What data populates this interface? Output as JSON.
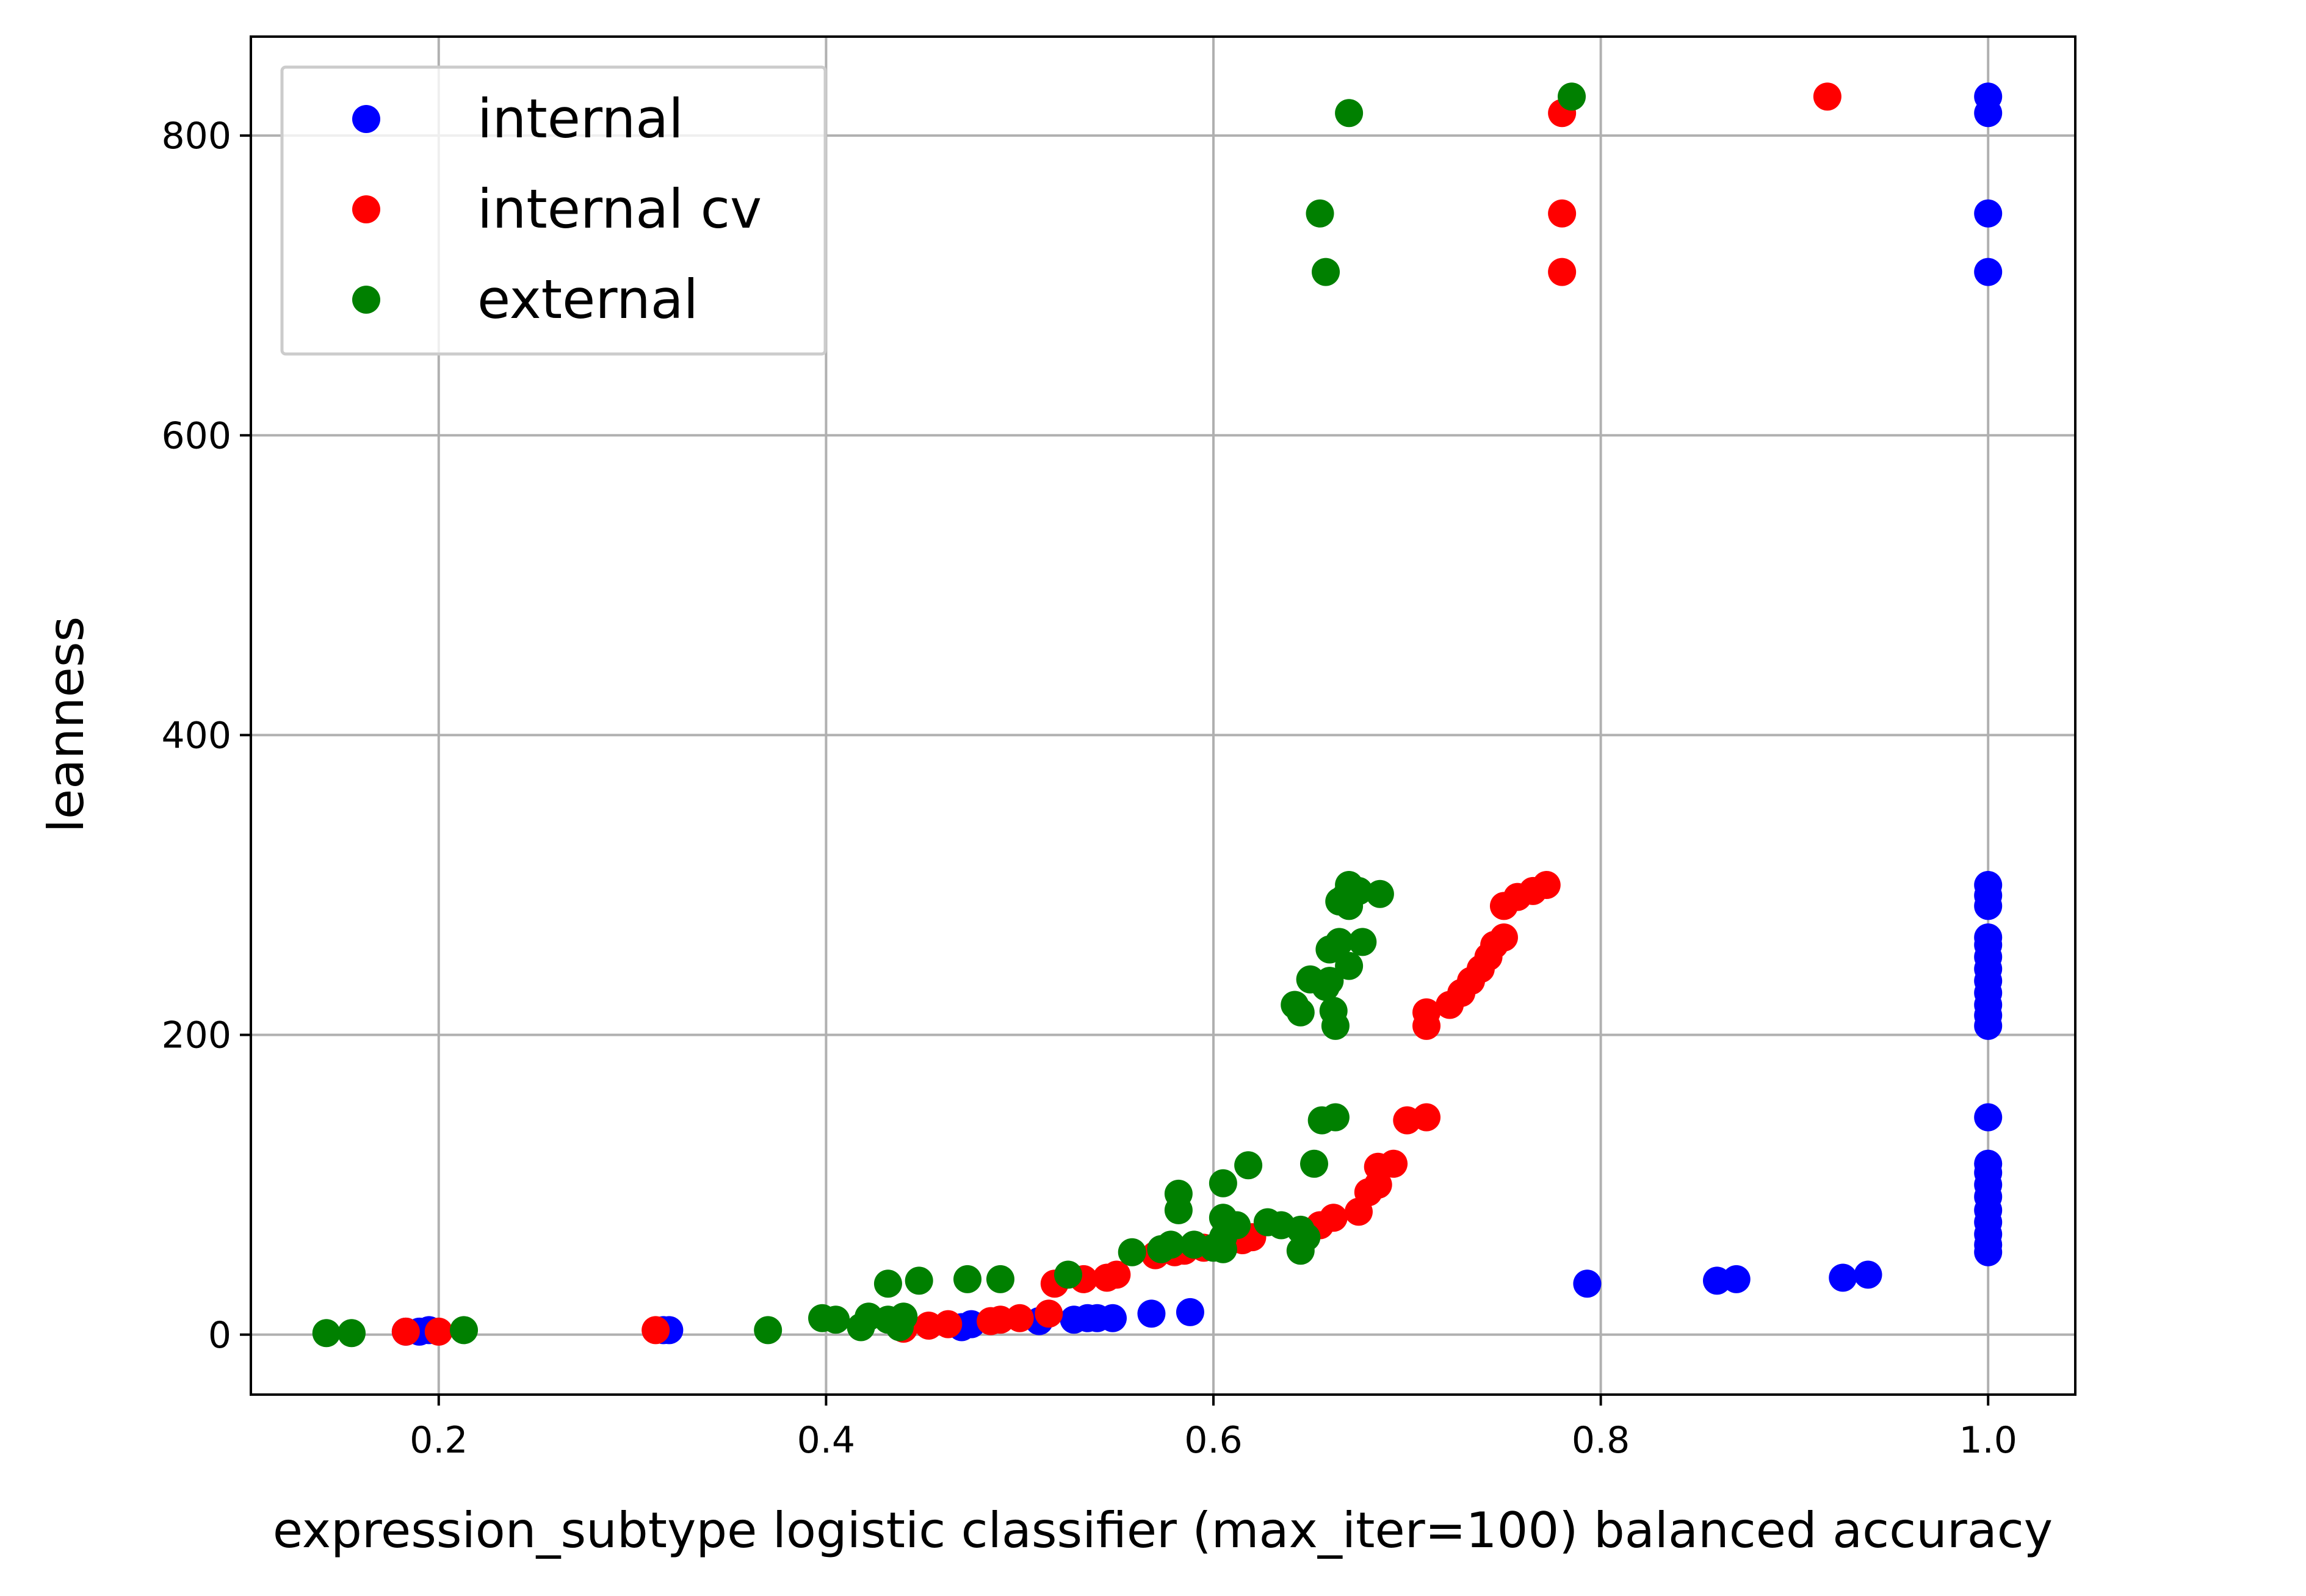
{
  "chart_data": {
    "type": "scatter",
    "title": "",
    "xlabel": "expression_subtype logistic classifier (max_iter=100) balanced accuracy",
    "ylabel": "leanness",
    "xlim": [
      0.103,
      1.045
    ],
    "ylim": [
      -40,
      866
    ],
    "xticks": [
      0.2,
      0.4,
      0.6,
      0.8,
      1.0
    ],
    "xtick_labels": [
      "0.2",
      "0.4",
      "0.6",
      "0.8",
      "1.0"
    ],
    "yticks": [
      0,
      200,
      400,
      600,
      800
    ],
    "ytick_labels": [
      "0",
      "200",
      "400",
      "600",
      "800"
    ],
    "grid": true,
    "legend_position": "top-left",
    "series": [
      {
        "name": "internal",
        "color": "#0000ff",
        "points": [
          [
            0.183,
            2
          ],
          [
            0.19,
            2
          ],
          [
            0.195,
            3
          ],
          [
            0.316,
            3
          ],
          [
            0.319,
            3
          ],
          [
            0.47,
            5
          ],
          [
            0.475,
            7
          ],
          [
            0.51,
            9
          ],
          [
            0.528,
            10
          ],
          [
            0.535,
            11
          ],
          [
            0.54,
            11
          ],
          [
            0.548,
            11
          ],
          [
            0.568,
            14
          ],
          [
            0.588,
            15
          ],
          [
            0.793,
            34
          ],
          [
            0.86,
            36
          ],
          [
            0.87,
            37
          ],
          [
            0.925,
            38
          ],
          [
            0.938,
            40
          ],
          [
            1.0,
            55
          ],
          [
            1.0,
            60
          ],
          [
            1.0,
            67
          ],
          [
            1.0,
            75
          ],
          [
            1.0,
            83
          ],
          [
            1.0,
            92
          ],
          [
            1.0,
            100
          ],
          [
            1.0,
            108
          ],
          [
            1.0,
            114
          ],
          [
            1.0,
            145
          ],
          [
            1.0,
            206
          ],
          [
            1.0,
            213
          ],
          [
            1.0,
            220
          ],
          [
            1.0,
            228
          ],
          [
            1.0,
            236
          ],
          [
            1.0,
            244
          ],
          [
            1.0,
            252
          ],
          [
            1.0,
            260
          ],
          [
            1.0,
            265
          ],
          [
            1.0,
            286
          ],
          [
            1.0,
            293
          ],
          [
            1.0,
            300
          ],
          [
            1.0,
            709
          ],
          [
            1.0,
            748
          ],
          [
            1.0,
            815
          ],
          [
            1.0,
            826
          ]
        ]
      },
      {
        "name": "internal cv",
        "color": "#ff0000",
        "points": [
          [
            0.183,
            2
          ],
          [
            0.2,
            2
          ],
          [
            0.312,
            3
          ],
          [
            0.44,
            4
          ],
          [
            0.453,
            6
          ],
          [
            0.463,
            7
          ],
          [
            0.485,
            9
          ],
          [
            0.49,
            10
          ],
          [
            0.5,
            11
          ],
          [
            0.515,
            14
          ],
          [
            0.518,
            34
          ],
          [
            0.533,
            37
          ],
          [
            0.545,
            38
          ],
          [
            0.55,
            40
          ],
          [
            0.57,
            53
          ],
          [
            0.58,
            55
          ],
          [
            0.585,
            56
          ],
          [
            0.595,
            58
          ],
          [
            0.615,
            63
          ],
          [
            0.62,
            65
          ],
          [
            0.655,
            73
          ],
          [
            0.662,
            78
          ],
          [
            0.675,
            82
          ],
          [
            0.68,
            95
          ],
          [
            0.685,
            100
          ],
          [
            0.685,
            112
          ],
          [
            0.693,
            114
          ],
          [
            0.7,
            143
          ],
          [
            0.71,
            145
          ],
          [
            0.71,
            206
          ],
          [
            0.71,
            215
          ],
          [
            0.722,
            220
          ],
          [
            0.728,
            228
          ],
          [
            0.733,
            236
          ],
          [
            0.738,
            244
          ],
          [
            0.742,
            252
          ],
          [
            0.745,
            260
          ],
          [
            0.75,
            265
          ],
          [
            0.75,
            286
          ],
          [
            0.757,
            292
          ],
          [
            0.765,
            296
          ],
          [
            0.772,
            300
          ],
          [
            0.78,
            709
          ],
          [
            0.78,
            748
          ],
          [
            0.78,
            815
          ],
          [
            0.917,
            826
          ]
        ]
      },
      {
        "name": "external",
        "color": "#008000",
        "points": [
          [
            0.142,
            1
          ],
          [
            0.155,
            1
          ],
          [
            0.213,
            3
          ],
          [
            0.37,
            3
          ],
          [
            0.398,
            11
          ],
          [
            0.405,
            10
          ],
          [
            0.418,
            5
          ],
          [
            0.422,
            12
          ],
          [
            0.432,
            10
          ],
          [
            0.432,
            34
          ],
          [
            0.438,
            5
          ],
          [
            0.44,
            12
          ],
          [
            0.448,
            36
          ],
          [
            0.473,
            37
          ],
          [
            0.49,
            37
          ],
          [
            0.525,
            40
          ],
          [
            0.558,
            55
          ],
          [
            0.573,
            57
          ],
          [
            0.578,
            60
          ],
          [
            0.582,
            83
          ],
          [
            0.582,
            94
          ],
          [
            0.59,
            60
          ],
          [
            0.6,
            58
          ],
          [
            0.605,
            57
          ],
          [
            0.605,
            65
          ],
          [
            0.605,
            78
          ],
          [
            0.605,
            101
          ],
          [
            0.612,
            73
          ],
          [
            0.618,
            113
          ],
          [
            0.628,
            75
          ],
          [
            0.635,
            73
          ],
          [
            0.645,
            70
          ],
          [
            0.645,
            56
          ],
          [
            0.648,
            65
          ],
          [
            0.652,
            114
          ],
          [
            0.656,
            143
          ],
          [
            0.663,
            145
          ],
          [
            0.642,
            220
          ],
          [
            0.645,
            215
          ],
          [
            0.65,
            237
          ],
          [
            0.658,
            232
          ],
          [
            0.66,
            257
          ],
          [
            0.66,
            236
          ],
          [
            0.662,
            216
          ],
          [
            0.663,
            206
          ],
          [
            0.665,
            262
          ],
          [
            0.67,
            246
          ],
          [
            0.665,
            289
          ],
          [
            0.668,
            292
          ],
          [
            0.67,
            286
          ],
          [
            0.67,
            300
          ],
          [
            0.675,
            296
          ],
          [
            0.677,
            262
          ],
          [
            0.686,
            294
          ],
          [
            0.655,
            748
          ],
          [
            0.658,
            709
          ],
          [
            0.67,
            815
          ],
          [
            0.785,
            826
          ]
        ]
      }
    ]
  }
}
